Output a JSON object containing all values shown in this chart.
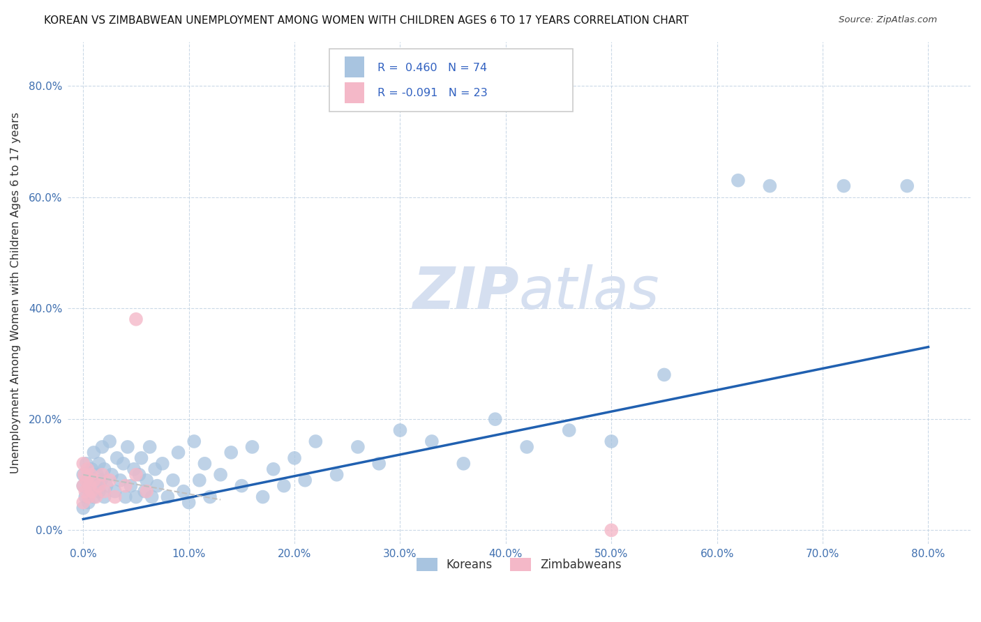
{
  "title": "KOREAN VS ZIMBABWEAN UNEMPLOYMENT AMONG WOMEN WITH CHILDREN AGES 6 TO 17 YEARS CORRELATION CHART",
  "source": "Source: ZipAtlas.com",
  "ylabel": "Unemployment Among Women with Children Ages 6 to 17 years",
  "korean_R": 0.46,
  "korean_N": 74,
  "zimbabwean_R": -0.091,
  "zimbabwean_N": 23,
  "korean_color": "#A8C4E0",
  "zimbabwean_color": "#F4B8C8",
  "line_color": "#2060B0",
  "zim_line_color": "#C0C0C0",
  "watermark_color": "#D5DFF0",
  "x_ticks": [
    0.0,
    0.1,
    0.2,
    0.3,
    0.4,
    0.5,
    0.6,
    0.7,
    0.8
  ],
  "y_ticks": [
    0.0,
    0.2,
    0.4,
    0.6,
    0.8
  ],
  "xlim": [
    -0.015,
    0.84
  ],
  "ylim": [
    -0.025,
    0.88
  ],
  "korean_x": [
    0.0,
    0.0,
    0.0,
    0.002,
    0.003,
    0.005,
    0.005,
    0.007,
    0.008,
    0.01,
    0.01,
    0.012,
    0.013,
    0.015,
    0.015,
    0.017,
    0.018,
    0.02,
    0.02,
    0.022,
    0.025,
    0.027,
    0.03,
    0.032,
    0.035,
    0.038,
    0.04,
    0.042,
    0.045,
    0.048,
    0.05,
    0.053,
    0.055,
    0.058,
    0.06,
    0.063,
    0.065,
    0.068,
    0.07,
    0.075,
    0.08,
    0.085,
    0.09,
    0.095,
    0.1,
    0.105,
    0.11,
    0.115,
    0.12,
    0.13,
    0.14,
    0.15,
    0.16,
    0.17,
    0.18,
    0.19,
    0.2,
    0.21,
    0.22,
    0.24,
    0.26,
    0.28,
    0.3,
    0.33,
    0.36,
    0.39,
    0.42,
    0.46,
    0.5,
    0.55,
    0.62,
    0.65,
    0.72,
    0.78
  ],
  "korean_y": [
    0.04,
    0.08,
    0.1,
    0.06,
    0.12,
    0.05,
    0.09,
    0.07,
    0.11,
    0.06,
    0.14,
    0.08,
    0.1,
    0.07,
    0.12,
    0.09,
    0.15,
    0.06,
    0.11,
    0.08,
    0.16,
    0.1,
    0.07,
    0.13,
    0.09,
    0.12,
    0.06,
    0.15,
    0.08,
    0.11,
    0.06,
    0.1,
    0.13,
    0.07,
    0.09,
    0.15,
    0.06,
    0.11,
    0.08,
    0.12,
    0.06,
    0.09,
    0.14,
    0.07,
    0.05,
    0.16,
    0.09,
    0.12,
    0.06,
    0.1,
    0.14,
    0.08,
    0.15,
    0.06,
    0.11,
    0.08,
    0.13,
    0.09,
    0.16,
    0.1,
    0.15,
    0.12,
    0.18,
    0.16,
    0.12,
    0.2,
    0.15,
    0.18,
    0.16,
    0.28,
    0.63,
    0.62,
    0.62,
    0.62
  ],
  "zimbabwean_x": [
    0.0,
    0.0,
    0.0,
    0.001,
    0.002,
    0.003,
    0.004,
    0.005,
    0.006,
    0.007,
    0.008,
    0.01,
    0.012,
    0.015,
    0.018,
    0.02,
    0.025,
    0.03,
    0.04,
    0.05,
    0.05,
    0.06,
    0.5
  ],
  "zimbabwean_y": [
    0.05,
    0.08,
    0.12,
    0.1,
    0.07,
    0.09,
    0.11,
    0.06,
    0.08,
    0.1,
    0.07,
    0.09,
    0.06,
    0.08,
    0.1,
    0.07,
    0.09,
    0.06,
    0.08,
    0.1,
    0.38,
    0.07,
    0.0
  ],
  "korean_line_x": [
    0.0,
    0.8
  ],
  "korean_line_y": [
    0.02,
    0.33
  ],
  "zim_line_x": [
    0.0,
    0.13
  ],
  "zim_line_y": [
    0.1,
    0.055
  ]
}
